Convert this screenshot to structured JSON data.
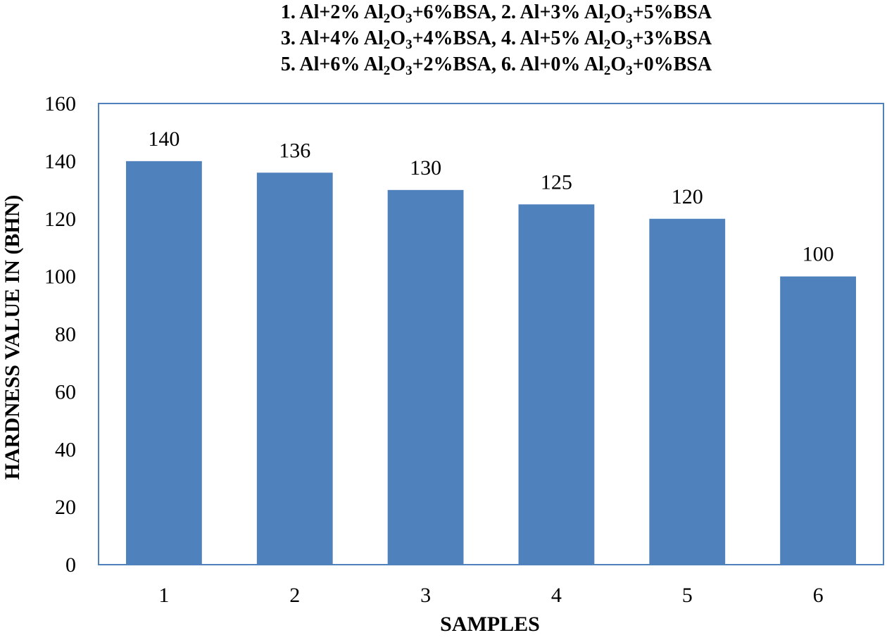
{
  "chart_data": {
    "type": "bar",
    "title_lines": [
      [
        {
          "t": "1. Al+2% Al"
        },
        {
          "t": "2",
          "sub": true
        },
        {
          "t": "O"
        },
        {
          "t": "3",
          "sub": true
        },
        {
          "t": "+6%BSA,  2. Al+3% Al"
        },
        {
          "t": "2",
          "sub": true
        },
        {
          "t": "O"
        },
        {
          "t": "3",
          "sub": true
        },
        {
          "t": "+5%BSA"
        }
      ],
      [
        {
          "t": "3. Al+4% Al"
        },
        {
          "t": "2",
          "sub": true
        },
        {
          "t": "O"
        },
        {
          "t": "3",
          "sub": true
        },
        {
          "t": "+4%BSA, 4. Al+5% Al"
        },
        {
          "t": "2",
          "sub": true
        },
        {
          "t": "O"
        },
        {
          "t": "3",
          "sub": true
        },
        {
          "t": "+3%BSA"
        }
      ],
      [
        {
          "t": "5. Al+6% Al"
        },
        {
          "t": "2",
          "sub": true
        },
        {
          "t": "O"
        },
        {
          "t": "3",
          "sub": true
        },
        {
          "t": "+2%BSA, 6. Al+0% Al"
        },
        {
          "t": "2",
          "sub": true
        },
        {
          "t": "O"
        },
        {
          "t": "3",
          "sub": true
        },
        {
          "t": "+0%BSA"
        }
      ]
    ],
    "categories": [
      "1",
      "2",
      "3",
      "4",
      "5",
      "6"
    ],
    "values": [
      140,
      136,
      130,
      125,
      120,
      100
    ],
    "data_labels": [
      "140",
      "136",
      "130",
      "125",
      "120",
      "100"
    ],
    "xlabel": "SAMPLES",
    "ylabel": "HARDNESS VALUE IN (BHN)",
    "ylim": [
      0,
      160
    ],
    "yticks": [
      0,
      20,
      40,
      60,
      80,
      100,
      120,
      140,
      160
    ],
    "grid": false,
    "legend": "none",
    "bar_color": "#4f81bd",
    "frame_color": "#4f81bd"
  }
}
